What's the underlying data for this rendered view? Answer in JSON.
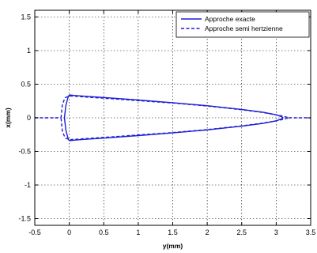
{
  "chart_data": {
    "type": "line",
    "title": "",
    "xlabel": "y(mm)",
    "ylabel": "x(mm)",
    "xlim": [
      -0.5,
      3.5
    ],
    "ylim": [
      -1.6,
      1.6
    ],
    "xticks": [
      "-0.5",
      "0",
      "0.5",
      "1",
      "1.5",
      "2",
      "2.5",
      "3",
      "3.5"
    ],
    "yticks": [
      "1.5",
      "1",
      "0.5",
      "0",
      "-0.5",
      "-1",
      "-1.5"
    ],
    "grid": true,
    "legend_position": "top-right",
    "series": [
      {
        "name": "Approche exacte",
        "style": "solid",
        "color": "#1f1fd6",
        "closed": true,
        "points": [
          [
            -0.07,
            0.0
          ],
          [
            -0.05,
            0.18
          ],
          [
            -0.02,
            0.3
          ],
          [
            0.0,
            0.34
          ],
          [
            0.1,
            0.33
          ],
          [
            0.3,
            0.315
          ],
          [
            0.6,
            0.295
          ],
          [
            1.0,
            0.265
          ],
          [
            1.5,
            0.225
          ],
          [
            2.0,
            0.18
          ],
          [
            2.5,
            0.125
          ],
          [
            2.8,
            0.085
          ],
          [
            3.0,
            0.045
          ],
          [
            3.08,
            0.015
          ],
          [
            3.1,
            0.0
          ],
          [
            3.08,
            -0.015
          ],
          [
            3.0,
            -0.045
          ],
          [
            2.8,
            -0.085
          ],
          [
            2.5,
            -0.125
          ],
          [
            2.0,
            -0.18
          ],
          [
            1.5,
            -0.225
          ],
          [
            1.0,
            -0.265
          ],
          [
            0.6,
            -0.295
          ],
          [
            0.3,
            -0.315
          ],
          [
            0.1,
            -0.33
          ],
          [
            0.0,
            -0.34
          ],
          [
            -0.02,
            -0.3
          ],
          [
            -0.05,
            -0.18
          ]
        ]
      },
      {
        "name": "Approche semi hertzienne",
        "style": "dashed",
        "color": "#1f1fd6",
        "closed": true,
        "points": [
          [
            -0.12,
            0.0
          ],
          [
            -0.1,
            0.2
          ],
          [
            -0.06,
            0.3
          ],
          [
            0.0,
            0.325
          ],
          [
            0.1,
            0.32
          ],
          [
            0.3,
            0.305
          ],
          [
            0.6,
            0.285
          ],
          [
            1.0,
            0.255
          ],
          [
            1.5,
            0.22
          ],
          [
            2.0,
            0.175
          ],
          [
            2.5,
            0.12
          ],
          [
            2.8,
            0.08
          ],
          [
            3.0,
            0.045
          ],
          [
            3.12,
            0.02
          ],
          [
            3.18,
            0.0
          ],
          [
            3.12,
            -0.02
          ],
          [
            3.0,
            -0.045
          ],
          [
            2.8,
            -0.08
          ],
          [
            2.5,
            -0.12
          ],
          [
            2.0,
            -0.175
          ],
          [
            1.5,
            -0.22
          ],
          [
            1.0,
            -0.255
          ],
          [
            0.6,
            -0.285
          ],
          [
            0.3,
            -0.305
          ],
          [
            0.1,
            -0.32
          ],
          [
            0.0,
            -0.325
          ],
          [
            -0.06,
            -0.3
          ],
          [
            -0.1,
            -0.2
          ]
        ]
      },
      {
        "name": "",
        "style": "dashed",
        "color": "#1f1fd6",
        "closed": false,
        "points": [
          [
            -0.5,
            0.0
          ],
          [
            -0.12,
            0.0
          ]
        ]
      },
      {
        "name": "",
        "style": "dashed",
        "color": "#1f1fd6",
        "closed": false,
        "points": [
          [
            3.18,
            0.0
          ],
          [
            3.5,
            0.0
          ]
        ]
      }
    ]
  }
}
